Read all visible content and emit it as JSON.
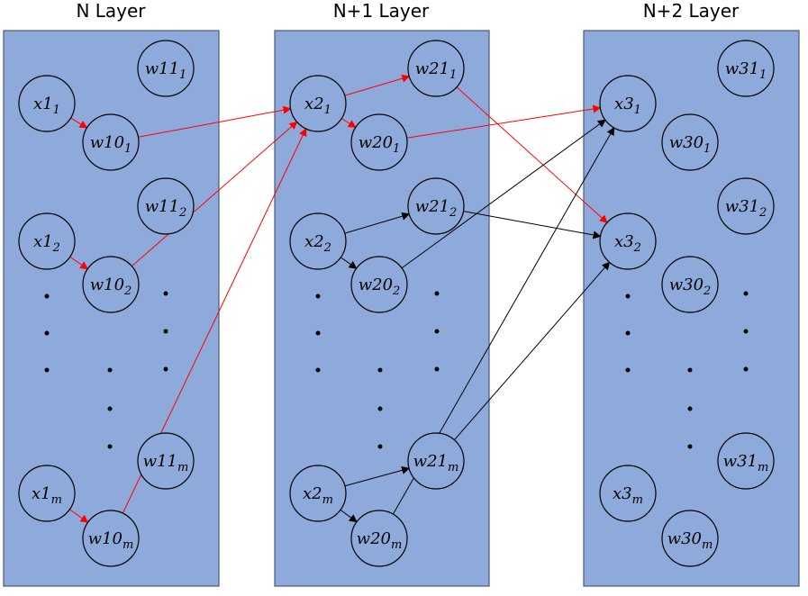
{
  "layers": [
    {
      "title": "N Layer"
    },
    {
      "title": "N+1 Layer"
    },
    {
      "title": "N+2 Layer"
    }
  ],
  "colors": {
    "panel": "#8eaadb",
    "highlight_edge": "#ff0000",
    "normal_edge": "#000000"
  },
  "nodes": [
    {
      "id": "x1_1",
      "base": "x1",
      "sub": "1"
    },
    {
      "id": "w11_1",
      "base": "w11",
      "sub": "1"
    },
    {
      "id": "w10_1",
      "base": "w10",
      "sub": "1"
    },
    {
      "id": "w11_2",
      "base": "w11",
      "sub": "2"
    },
    {
      "id": "x1_2",
      "base": "x1",
      "sub": "2"
    },
    {
      "id": "w10_2",
      "base": "w10",
      "sub": "2"
    },
    {
      "id": "w11_m",
      "base": "w11",
      "sub": "m"
    },
    {
      "id": "x1_m",
      "base": "x1",
      "sub": "m"
    },
    {
      "id": "w10_m",
      "base": "w10",
      "sub": "m"
    },
    {
      "id": "x2_1",
      "base": "x2",
      "sub": "1"
    },
    {
      "id": "w21_1",
      "base": "w21",
      "sub": "1"
    },
    {
      "id": "w20_1",
      "base": "w20",
      "sub": "1"
    },
    {
      "id": "x2_2",
      "base": "x2",
      "sub": "2"
    },
    {
      "id": "w21_2",
      "base": "w21",
      "sub": "2"
    },
    {
      "id": "w20_2",
      "base": "w20",
      "sub": "2"
    },
    {
      "id": "x2_m",
      "base": "x2",
      "sub": "m"
    },
    {
      "id": "w21_m",
      "base": "w21",
      "sub": "m"
    },
    {
      "id": "w20_m",
      "base": "w20",
      "sub": "m"
    },
    {
      "id": "x3_1",
      "base": "x3",
      "sub": "1"
    },
    {
      "id": "w31_1",
      "base": "w31",
      "sub": "1"
    },
    {
      "id": "w30_1",
      "base": "w30",
      "sub": "1"
    },
    {
      "id": "x3_2",
      "base": "x3",
      "sub": "2"
    },
    {
      "id": "w31_2",
      "base": "w31",
      "sub": "2"
    },
    {
      "id": "w30_2",
      "base": "w30",
      "sub": "2"
    },
    {
      "id": "x3_m",
      "base": "x3",
      "sub": "m"
    },
    {
      "id": "w31_m",
      "base": "w31",
      "sub": "m"
    },
    {
      "id": "w30_m",
      "base": "w30",
      "sub": "m"
    }
  ],
  "edges": [
    {
      "from": "x1_1",
      "to": "w10_1",
      "color": "red"
    },
    {
      "from": "x1_2",
      "to": "w10_2",
      "color": "red"
    },
    {
      "from": "x1_m",
      "to": "w10_m",
      "color": "red"
    },
    {
      "from": "w10_1",
      "to": "x2_1",
      "color": "red"
    },
    {
      "from": "w10_2",
      "to": "x2_1",
      "color": "red"
    },
    {
      "from": "w10_m",
      "to": "x2_1",
      "color": "red"
    },
    {
      "from": "x2_1",
      "to": "w21_1",
      "color": "red"
    },
    {
      "from": "x2_1",
      "to": "w20_1",
      "color": "red"
    },
    {
      "from": "w20_1",
      "to": "x3_1",
      "color": "red"
    },
    {
      "from": "w21_1",
      "to": "x3_2",
      "color": "red"
    },
    {
      "from": "x2_2",
      "to": "w21_2",
      "color": "black"
    },
    {
      "from": "x2_2",
      "to": "w20_2",
      "color": "black"
    },
    {
      "from": "x2_m",
      "to": "w21_m",
      "color": "black"
    },
    {
      "from": "x2_m",
      "to": "w20_m",
      "color": "black"
    },
    {
      "from": "w20_2",
      "to": "x3_1",
      "color": "black"
    },
    {
      "from": "w20_m",
      "to": "x3_1",
      "color": "black"
    },
    {
      "from": "w21_2",
      "to": "x3_2",
      "color": "black"
    },
    {
      "from": "w21_m",
      "to": "x3_2",
      "color": "black"
    }
  ]
}
